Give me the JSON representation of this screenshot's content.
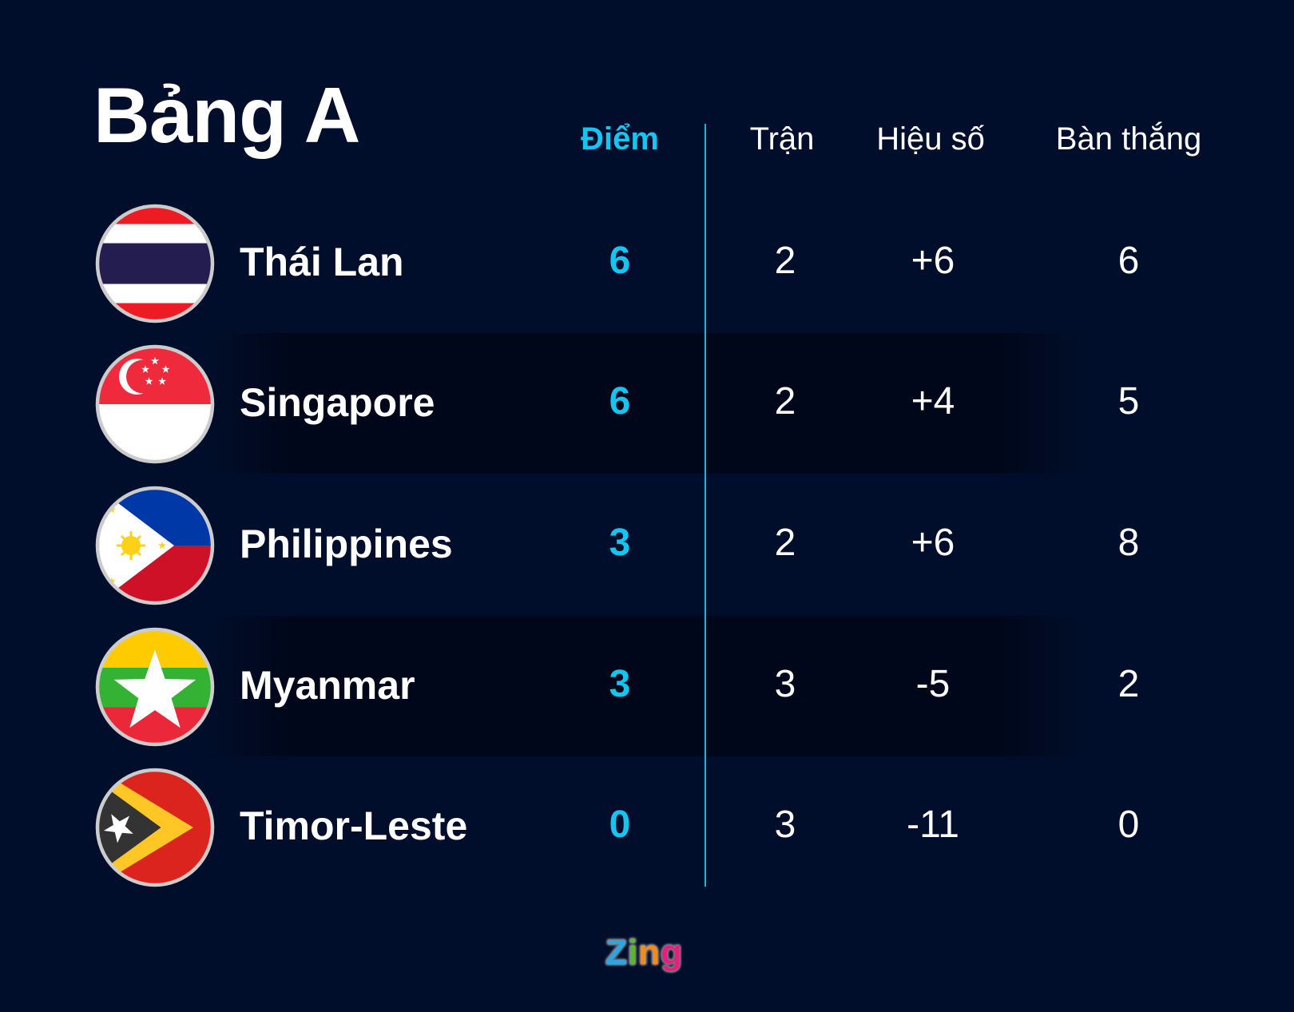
{
  "title": "Bảng A",
  "headers": {
    "points": "Điểm",
    "played": "Trận",
    "goal_diff": "Hiệu số",
    "goals_for": "Bàn thắng"
  },
  "accent_color": "#13c6f2",
  "teams": [
    {
      "name": "Thái Lan",
      "flag": "thailand-flag",
      "points": "6",
      "played": "2",
      "goal_diff": "+6",
      "goals_for": "6"
    },
    {
      "name": "Singapore",
      "flag": "singapore-flag",
      "points": "6",
      "played": "2",
      "goal_diff": "+4",
      "goals_for": "5"
    },
    {
      "name": "Philippines",
      "flag": "philippines-flag",
      "points": "3",
      "played": "2",
      "goal_diff": "+6",
      "goals_for": "8"
    },
    {
      "name": "Myanmar",
      "flag": "myanmar-flag",
      "points": "3",
      "played": "3",
      "goal_diff": "-5",
      "goals_for": "2"
    },
    {
      "name": "Timor-Leste",
      "flag": "timor-leste-flag",
      "points": "0",
      "played": "3",
      "goal_diff": "-11",
      "goals_for": "0"
    }
  ],
  "logo": "Zing"
}
